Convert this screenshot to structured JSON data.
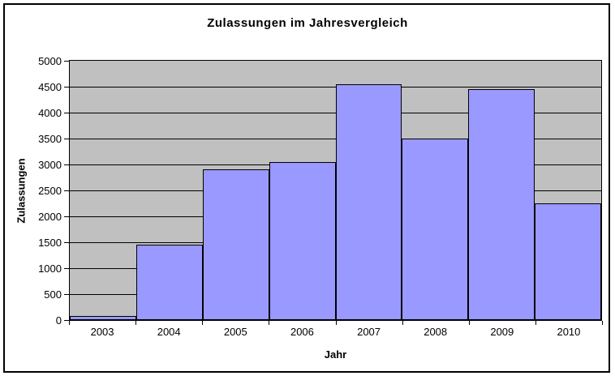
{
  "chart_data": {
    "type": "bar",
    "title": "Zulassungen im Jahresvergleich",
    "xlabel": "Jahr",
    "ylabel": "Zulassungen",
    "categories": [
      "2003",
      "2004",
      "2005",
      "2006",
      "2007",
      "2008",
      "2009",
      "2010"
    ],
    "values": [
      75,
      1450,
      2900,
      3050,
      4550,
      3500,
      4450,
      2250
    ],
    "ylim": [
      0,
      5000
    ],
    "ytick_step": 500,
    "ytick_labels": [
      "0",
      "500",
      "1000",
      "1500",
      "2000",
      "2500",
      "3000",
      "3500",
      "4000",
      "4500",
      "5000"
    ],
    "grid": true,
    "legend": "none",
    "colors": {
      "bar_fill": "#9999FF",
      "bar_border": "#000000",
      "plot_background": "#C0C0C0",
      "gridline": "#000000",
      "chart_background": "#FFFFFF",
      "frame_border": "#000000",
      "text": "#000000"
    }
  }
}
